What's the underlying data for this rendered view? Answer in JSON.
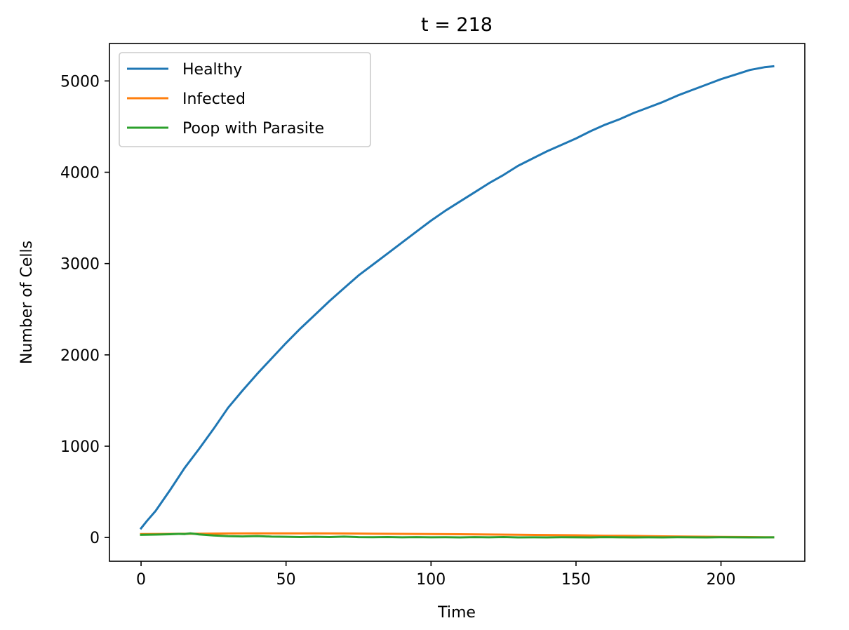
{
  "chart_data": {
    "type": "line",
    "title": "t = 218",
    "xlabel": "Time",
    "ylabel": "Number of Cells",
    "xlim": [
      -10.9,
      228.9
    ],
    "ylim": [
      -260,
      5410
    ],
    "xticks": [
      0,
      50,
      100,
      150,
      200
    ],
    "yticks": [
      0,
      1000,
      2000,
      3000,
      4000,
      5000
    ],
    "grid": false,
    "legend_position": "upper-left",
    "series": [
      {
        "name": "Healthy",
        "color": "#1f77b4",
        "x": [
          0,
          2,
          5,
          10,
          15,
          20,
          25,
          30,
          35,
          40,
          45,
          50,
          55,
          60,
          65,
          70,
          75,
          80,
          85,
          90,
          95,
          100,
          105,
          110,
          115,
          120,
          125,
          130,
          135,
          140,
          145,
          150,
          155,
          160,
          165,
          170,
          175,
          180,
          185,
          190,
          195,
          200,
          205,
          210,
          215,
          218
        ],
        "y": [
          100,
          180,
          290,
          520,
          760,
          970,
          1190,
          1420,
          1610,
          1790,
          1960,
          2130,
          2290,
          2440,
          2590,
          2730,
          2870,
          2990,
          3110,
          3230,
          3350,
          3470,
          3580,
          3680,
          3780,
          3880,
          3970,
          4070,
          4150,
          4230,
          4300,
          4370,
          4450,
          4520,
          4580,
          4650,
          4710,
          4770,
          4840,
          4900,
          4960,
          5020,
          5070,
          5120,
          5150,
          5160
        ]
      },
      {
        "name": "Infected",
        "color": "#ff7f0e",
        "x": [
          0,
          10,
          20,
          30,
          40,
          50,
          60,
          70,
          80,
          90,
          100,
          110,
          120,
          130,
          140,
          150,
          160,
          170,
          180,
          190,
          200,
          210,
          218
        ],
        "y": [
          38,
          40,
          42,
          44,
          46,
          46,
          45,
          44,
          42,
          40,
          38,
          36,
          33,
          30,
          27,
          24,
          20,
          17,
          13,
          10,
          7,
          5,
          3
        ]
      },
      {
        "name": "Poop with Parasite",
        "color": "#2ca02c",
        "x": [
          0,
          5,
          10,
          13,
          15,
          17,
          20,
          25,
          30,
          35,
          40,
          45,
          50,
          55,
          60,
          65,
          70,
          75,
          80,
          85,
          90,
          95,
          100,
          105,
          110,
          115,
          120,
          125,
          130,
          135,
          140,
          145,
          150,
          155,
          160,
          165,
          170,
          175,
          180,
          185,
          190,
          195,
          200,
          205,
          210,
          215,
          218
        ],
        "y": [
          30,
          32,
          36,
          40,
          38,
          46,
          34,
          22,
          14,
          12,
          16,
          10,
          8,
          5,
          8,
          5,
          10,
          4,
          3,
          5,
          2,
          4,
          2,
          3,
          1,
          4,
          2,
          5,
          1,
          2,
          1,
          3,
          2,
          1,
          4,
          2,
          1,
          2,
          1,
          3,
          2,
          1,
          3,
          2,
          1,
          1,
          2
        ]
      }
    ]
  }
}
